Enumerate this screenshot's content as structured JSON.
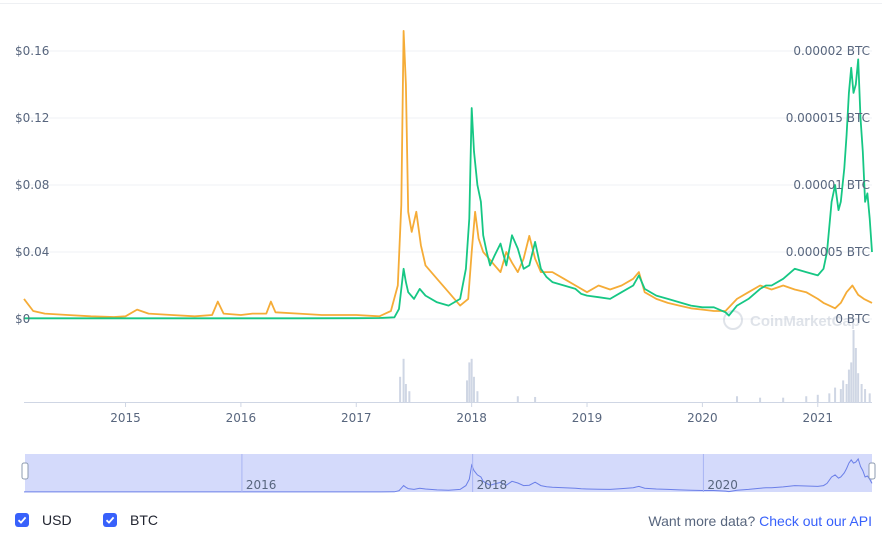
{
  "chart_data": {
    "type": "line",
    "x_range": [
      2014.12,
      2021.47
    ],
    "y_left": {
      "ticks": [
        "$0",
        "$0.04",
        "$0.08",
        "$0.12",
        "$0.16"
      ],
      "values": [
        0,
        0.04,
        0.08,
        0.12,
        0.16
      ]
    },
    "y_right": {
      "ticks": [
        "0 BTC",
        "0.000005 BTC",
        "0.00001 BTC",
        "0.000015 BTC",
        "0.00002 BTC"
      ],
      "values": [
        0,
        5e-06,
        1e-05,
        1.5e-05,
        2e-05
      ]
    },
    "x_ticks": [
      "2015",
      "2016",
      "2017",
      "2018",
      "2019",
      "2020",
      "2021"
    ],
    "x_tick_values": [
      2015.0,
      2016.0,
      2017.0,
      2018.0,
      2019.0,
      2020.0,
      2021.0
    ],
    "navigator_labels": [
      "2016",
      "2018",
      "2020"
    ],
    "navigator_label_values": [
      2016.0,
      2018.0,
      2020.0
    ],
    "series": [
      {
        "name": "USD",
        "color": "#16c784",
        "axis": "left",
        "x": [
          2014.12,
          2014.5,
          2015.0,
          2015.5,
          2016.0,
          2016.5,
          2017.0,
          2017.2,
          2017.33,
          2017.37,
          2017.39,
          2017.41,
          2017.43,
          2017.45,
          2017.5,
          2017.55,
          2017.6,
          2017.7,
          2017.8,
          2017.9,
          2017.95,
          2017.98,
          2018.0,
          2018.02,
          2018.05,
          2018.08,
          2018.1,
          2018.13,
          2018.16,
          2018.2,
          2018.25,
          2018.3,
          2018.35,
          2018.4,
          2018.45,
          2018.5,
          2018.55,
          2018.6,
          2018.65,
          2018.7,
          2018.8,
          2018.9,
          2018.95,
          2019.0,
          2019.1,
          2019.2,
          2019.3,
          2019.4,
          2019.45,
          2019.5,
          2019.6,
          2019.7,
          2019.8,
          2019.9,
          2020.0,
          2020.1,
          2020.2,
          2020.23,
          2020.3,
          2020.4,
          2020.5,
          2020.55,
          2020.6,
          2020.7,
          2020.8,
          2020.9,
          2021.0,
          2021.05,
          2021.08,
          2021.12,
          2021.15,
          2021.18,
          2021.2,
          2021.23,
          2021.25,
          2021.27,
          2021.29,
          2021.31,
          2021.33,
          2021.35,
          2021.37,
          2021.39,
          2021.41,
          2021.43,
          2021.45,
          2021.47
        ],
        "values": [
          0.0004,
          0.0004,
          0.0004,
          0.0004,
          0.0004,
          0.0004,
          0.0005,
          0.0006,
          0.001,
          0.006,
          0.018,
          0.03,
          0.022,
          0.016,
          0.012,
          0.018,
          0.014,
          0.01,
          0.008,
          0.012,
          0.03,
          0.06,
          0.126,
          0.1,
          0.08,
          0.07,
          0.05,
          0.04,
          0.032,
          0.038,
          0.045,
          0.032,
          0.05,
          0.042,
          0.03,
          0.032,
          0.046,
          0.03,
          0.025,
          0.022,
          0.02,
          0.018,
          0.015,
          0.014,
          0.013,
          0.012,
          0.016,
          0.02,
          0.026,
          0.018,
          0.014,
          0.012,
          0.01,
          0.008,
          0.007,
          0.007,
          0.004,
          0.002,
          0.008,
          0.012,
          0.018,
          0.02,
          0.02,
          0.024,
          0.03,
          0.028,
          0.026,
          0.03,
          0.04,
          0.07,
          0.08,
          0.065,
          0.07,
          0.09,
          0.11,
          0.135,
          0.15,
          0.135,
          0.14,
          0.155,
          0.12,
          0.1,
          0.07,
          0.075,
          0.06,
          0.04
        ]
      },
      {
        "name": "BTC",
        "color": "#f5ac37",
        "axis": "right",
        "x": [
          2014.12,
          2014.2,
          2014.3,
          2014.5,
          2014.7,
          2014.9,
          2015.0,
          2015.1,
          2015.2,
          2015.4,
          2015.6,
          2015.75,
          2015.8,
          2015.85,
          2016.0,
          2016.1,
          2016.22,
          2016.26,
          2016.3,
          2016.5,
          2016.7,
          2017.0,
          2017.2,
          2017.3,
          2017.36,
          2017.39,
          2017.41,
          2017.43,
          2017.45,
          2017.48,
          2017.52,
          2017.56,
          2017.6,
          2017.7,
          2017.8,
          2017.9,
          2017.97,
          2018.0,
          2018.03,
          2018.06,
          2018.1,
          2018.15,
          2018.2,
          2018.25,
          2018.3,
          2018.35,
          2018.4,
          2018.45,
          2018.5,
          2018.55,
          2018.6,
          2018.7,
          2018.8,
          2018.9,
          2019.0,
          2019.1,
          2019.2,
          2019.3,
          2019.4,
          2019.45,
          2019.5,
          2019.6,
          2019.7,
          2019.8,
          2019.9,
          2020.0,
          2020.1,
          2020.2,
          2020.3,
          2020.4,
          2020.5,
          2020.6,
          2020.7,
          2020.8,
          2020.9,
          2021.0,
          2021.05,
          2021.1,
          2021.15,
          2021.2,
          2021.25,
          2021.3,
          2021.35,
          2021.4,
          2021.47
        ],
        "values": [
          1.5e-06,
          6e-07,
          4e-07,
          3e-07,
          2e-07,
          1.5e-07,
          2e-07,
          7e-07,
          4e-07,
          3e-07,
          2e-07,
          3e-07,
          1.3e-06,
          4e-07,
          3e-07,
          4e-07,
          4e-07,
          1.3e-06,
          5e-07,
          4e-07,
          3e-07,
          3e-07,
          2e-07,
          6e-07,
          2.5e-06,
          8.5e-06,
          2.15e-05,
          1.75e-05,
          8e-06,
          6.5e-06,
          8e-06,
          5.5e-06,
          4e-06,
          3e-06,
          2e-06,
          1e-06,
          1.5e-06,
          5e-06,
          8e-06,
          6e-06,
          5e-06,
          4.5e-06,
          4e-06,
          3.5e-06,
          5e-06,
          4.2e-06,
          3.5e-06,
          4.5e-06,
          6.2e-06,
          4.5e-06,
          3.5e-06,
          3.5e-06,
          3e-06,
          2.5e-06,
          2e-06,
          2.5e-06,
          2.2e-06,
          2.5e-06,
          3e-06,
          3.5e-06,
          2e-06,
          1.5e-06,
          1.2e-06,
          1e-06,
          8e-07,
          7e-07,
          6e-07,
          6e-07,
          1.5e-06,
          2e-06,
          2.5e-06,
          2.2e-06,
          2.5e-06,
          2.2e-06,
          2e-06,
          1.5e-06,
          1.2e-06,
          1e-06,
          8e-07,
          1.2e-06,
          2e-06,
          2.5e-06,
          1.8e-06,
          1.5e-06,
          1.2e-06
        ]
      }
    ],
    "volume": {
      "color": "#cfd6e4",
      "x": [
        2017.38,
        2017.41,
        2017.43,
        2017.46,
        2017.96,
        2017.98,
        2018.0,
        2018.02,
        2018.05,
        2018.4,
        2018.55,
        2020.3,
        2020.5,
        2020.7,
        2020.9,
        2021.0,
        2021.1,
        2021.15,
        2021.2,
        2021.22,
        2021.25,
        2021.27,
        2021.29,
        2021.31,
        2021.33,
        2021.35,
        2021.38,
        2021.41,
        2021.45
      ],
      "values": [
        0.35,
        0.6,
        0.25,
        0.15,
        0.3,
        0.55,
        0.6,
        0.35,
        0.15,
        0.08,
        0.07,
        0.08,
        0.06,
        0.06,
        0.08,
        0.1,
        0.12,
        0.2,
        0.18,
        0.3,
        0.25,
        0.45,
        0.55,
        1.0,
        0.75,
        0.4,
        0.25,
        0.18,
        0.12
      ]
    },
    "grid": true,
    "watermark": "CoinMarketCap"
  },
  "legend": [
    {
      "label": "USD",
      "color": "#3861fb",
      "checked": true
    },
    {
      "label": "BTC",
      "color": "#3861fb",
      "checked": true
    }
  ],
  "footer": {
    "prompt": "Want more data?",
    "link": "Check out our API"
  }
}
